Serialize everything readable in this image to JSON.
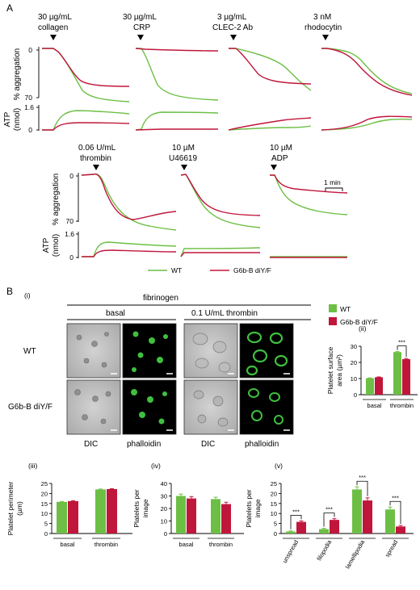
{
  "colors": {
    "wt": "#6cbf44",
    "mut": "#c0163c"
  },
  "panelA": {
    "label": "A",
    "aggr_axis": "% aggregation",
    "atp_axis": "ATP",
    "atp_unit": "(nmol)",
    "tick_0": "0",
    "tick_70": "70",
    "tick_16": "1.6",
    "scale_bar": "1 min",
    "row1": [
      {
        "l1": "30 µg/mL",
        "l2": "collagen"
      },
      {
        "l1": "30 µg/mL",
        "l2": "CRP"
      },
      {
        "l1": "3 µg/mL",
        "l2": "CLEC-2 Ab"
      },
      {
        "l1": "3 nM",
        "l2": "rhodocytin"
      }
    ],
    "row2": [
      {
        "l1": "0.06 U/mL",
        "l2": "thrombin"
      },
      {
        "l1": "10 µM",
        "l2": "U46619"
      },
      {
        "l1": "10 µM",
        "l2": "ADP"
      }
    ],
    "legend_wt": "WT",
    "legend_mut": "G6b-B diY/F"
  },
  "panelB": {
    "label": "B",
    "sub_i": "(i)",
    "fibrinogen": "fibrinogen",
    "basal": "basal",
    "thrombin_cond": "0.1 U/mL thrombin",
    "row_wt": "WT",
    "row_mut": "G6b-B diY/F",
    "col_dic": "DIC",
    "col_phalloidin": "phalloidin",
    "legend_wt": "WT",
    "legend_mut": "G6b-B diY/F",
    "sig": "***"
  },
  "chart_data": [
    {
      "id": "ii",
      "type": "bar",
      "panel": "(ii)",
      "ylabel": "Platelet surface area (µm²)",
      "ylabel_l1": "Platelet surface",
      "ylabel_l2": "area (µm²)",
      "ylim": [
        0,
        30
      ],
      "yticks": [
        0,
        10,
        20,
        30
      ],
      "categories": [
        "basal",
        "thrombin"
      ],
      "series": [
        {
          "name": "WT",
          "values": [
            10.2,
            26.4
          ],
          "err": [
            0.2,
            0.3
          ]
        },
        {
          "name": "G6b-B diY/F",
          "values": [
            10.8,
            22.0
          ],
          "err": [
            0.2,
            0.4
          ]
        }
      ],
      "significance": [
        {
          "category": "thrombin",
          "label": "***"
        }
      ]
    },
    {
      "id": "iii",
      "type": "bar",
      "panel": "(iii)",
      "ylabel": "Platelet perimeter (µm)",
      "ylabel_l1": "Platelet perimeter",
      "ylabel_l2": "(µm)",
      "ylim": [
        0,
        25
      ],
      "yticks": [
        0,
        5,
        10,
        15,
        20,
        25
      ],
      "categories": [
        "basal",
        "thrombin"
      ],
      "series": [
        {
          "name": "WT",
          "values": [
            15.8,
            22.0
          ],
          "err": [
            0.2,
            0.2
          ]
        },
        {
          "name": "G6b-B diY/F",
          "values": [
            16.2,
            22.2
          ],
          "err": [
            0.2,
            0.2
          ]
        }
      ],
      "significance": []
    },
    {
      "id": "iv",
      "type": "bar",
      "panel": "(iv)",
      "ylabel": "Platelets per image",
      "ylabel_l1": "Platelets per",
      "ylabel_l2": "image",
      "ylim": [
        0,
        40
      ],
      "yticks": [
        0,
        10,
        20,
        30,
        40
      ],
      "categories": [
        "basal",
        "thrombin"
      ],
      "series": [
        {
          "name": "WT",
          "values": [
            30.0,
            27.5
          ],
          "err": [
            1.5,
            1.5
          ]
        },
        {
          "name": "G6b-B diY/F",
          "values": [
            28.0,
            23.5
          ],
          "err": [
            1.5,
            1.5
          ]
        }
      ],
      "significance": []
    },
    {
      "id": "v",
      "type": "bar",
      "panel": "(v)",
      "ylabel": "Platelets per image",
      "ylabel_l1": "Platelets per",
      "ylabel_l2": "image",
      "ylim": [
        0,
        25
      ],
      "yticks": [
        0,
        5,
        10,
        15,
        20,
        25
      ],
      "categories": [
        "unspread",
        "filopodia",
        "lamellipodia",
        "spread"
      ],
      "series": [
        {
          "name": "WT",
          "values": [
            1.0,
            2.2,
            22.0,
            12.0
          ],
          "err": [
            0.3,
            0.4,
            1.3,
            1.2
          ]
        },
        {
          "name": "G6b-B diY/F",
          "values": [
            5.8,
            6.8,
            16.5,
            3.5
          ],
          "err": [
            0.5,
            0.6,
            1.3,
            0.5
          ]
        }
      ],
      "significance": [
        {
          "category": "unspread",
          "label": "***"
        },
        {
          "category": "filopodia",
          "label": "***"
        },
        {
          "category": "lamellipodia",
          "label": "***"
        },
        {
          "category": "spread",
          "label": "***"
        }
      ]
    }
  ]
}
